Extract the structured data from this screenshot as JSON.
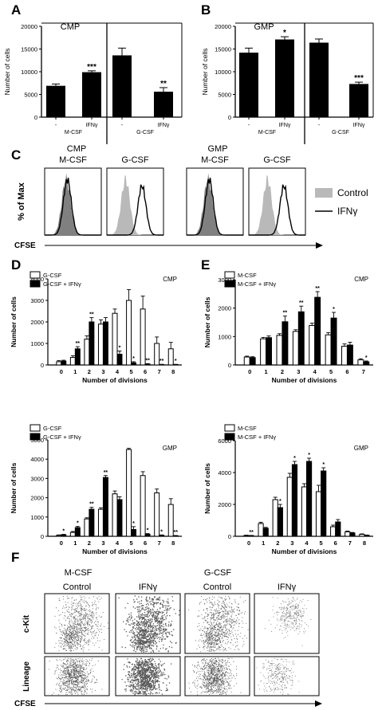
{
  "panel_letters": [
    "A",
    "B",
    "C",
    "D",
    "E",
    "F"
  ],
  "chart_data": [
    {
      "id": "A",
      "type": "bar",
      "title": "CMP",
      "ylabel": "Number of cells",
      "ylim": [
        0,
        20000
      ],
      "yticks": [
        0,
        5000,
        10000,
        15000,
        20000
      ],
      "categories": [
        "-",
        "IFNγ",
        "-",
        "IFNγ"
      ],
      "group_labels": [
        "M-CSF",
        "G-CSF"
      ],
      "values": [
        6900,
        9900,
        13600,
        5600
      ],
      "errors": [
        400,
        300,
        1600,
        900
      ],
      "sig": [
        "",
        "***",
        "",
        "**"
      ]
    },
    {
      "id": "B",
      "type": "bar",
      "title": "GMP",
      "ylabel": "Number of cells",
      "ylim": [
        0,
        20000
      ],
      "yticks": [
        0,
        5000,
        10000,
        15000,
        20000
      ],
      "categories": [
        "-",
        "IFNγ",
        "-",
        "IFNγ"
      ],
      "group_labels": [
        "M-CSF",
        "G-CSF"
      ],
      "values": [
        14200,
        17100,
        16400,
        7300
      ],
      "errors": [
        1000,
        600,
        800,
        400
      ],
      "sig": [
        "",
        "*",
        "",
        "***"
      ]
    },
    {
      "id": "C",
      "type": "area",
      "group_titles": [
        "CMP",
        "GMP"
      ],
      "box_titles": [
        "M-CSF",
        "G-CSF",
        "M-CSF",
        "G-CSF"
      ],
      "ylabel": "% of Max",
      "xlabel": "CFSE",
      "legend": [
        "Control",
        "IFNγ"
      ],
      "colors": {
        "control_mcsf": "#808080",
        "control_gcsf": "#b9b9b9",
        "ifn": "#000000"
      }
    },
    {
      "id": "D-CMP",
      "type": "bar",
      "label": "CMP",
      "xlabel": "Number of divisions",
      "ylabel": "Number of cells",
      "ylim": [
        0,
        4000
      ],
      "yticks": [
        0,
        1000,
        2000,
        3000,
        4000
      ],
      "categories": [
        "0",
        "1",
        "2",
        "3",
        "4",
        "5",
        "6",
        "7",
        "8"
      ],
      "series": [
        {
          "name": "G-CSF",
          "values": [
            150,
            350,
            1200,
            1900,
            2400,
            3000,
            2600,
            1000,
            750
          ],
          "errors": [
            50,
            80,
            150,
            200,
            200,
            500,
            600,
            300,
            300
          ]
        },
        {
          "name": "G-CSF + IFNγ",
          "values": [
            180,
            750,
            2000,
            2000,
            500,
            100,
            40,
            20,
            20
          ],
          "errors": [
            40,
            100,
            200,
            200,
            150,
            50,
            20,
            10,
            10
          ]
        }
      ],
      "sig": [
        "",
        "**",
        "**",
        "",
        "*",
        "*",
        "**",
        "**",
        "*"
      ]
    },
    {
      "id": "D-GMP",
      "type": "bar",
      "label": "GMP",
      "xlabel": "Number of divisions",
      "ylabel": "Number of cells",
      "ylim": [
        0,
        5000
      ],
      "yticks": [
        0,
        1000,
        2000,
        3000,
        4000,
        5000
      ],
      "categories": [
        "0",
        "1",
        "2",
        "3",
        "4",
        "5",
        "6",
        "7",
        "8"
      ],
      "series": [
        {
          "name": "G-CSF",
          "values": [
            50,
            200,
            900,
            1400,
            2200,
            4500,
            3150,
            2250,
            1650
          ],
          "errors": [
            20,
            50,
            60,
            80,
            150,
            60,
            200,
            200,
            300
          ]
        },
        {
          "name": "G-CSF + IFNγ",
          "values": [
            80,
            450,
            1400,
            3050,
            1900,
            350,
            100,
            50,
            30
          ],
          "errors": [
            20,
            60,
            100,
            100,
            150,
            150,
            40,
            20,
            10
          ]
        }
      ],
      "sig": [
        "*",
        "*",
        "**",
        "**",
        "",
        "*",
        "*",
        "*",
        "**"
      ]
    },
    {
      "id": "E-CMP",
      "type": "bar",
      "label": "CMP",
      "xlabel": "Number of divisions",
      "ylabel": "Number of cells",
      "ylim": [
        0,
        3000
      ],
      "yticks": [
        0,
        1000,
        2000,
        3000
      ],
      "categories": [
        "0",
        "1",
        "2",
        "3",
        "4",
        "5",
        "6",
        "7"
      ],
      "series": [
        {
          "name": "M-CSF",
          "values": [
            280,
            920,
            1040,
            1180,
            1390,
            1060,
            660,
            180
          ],
          "errors": [
            30,
            50,
            60,
            60,
            80,
            80,
            80,
            40
          ]
        },
        {
          "name": "M-CSF + IFNγ",
          "values": [
            260,
            960,
            1520,
            1870,
            2380,
            1650,
            700,
            110
          ],
          "errors": [
            30,
            60,
            200,
            200,
            200,
            200,
            100,
            30
          ]
        }
      ],
      "sig": [
        "",
        "",
        "**",
        "**",
        "**",
        "*",
        "",
        "*"
      ]
    },
    {
      "id": "E-GMP",
      "type": "bar",
      "label": "GMP",
      "xlabel": "Number of divisions",
      "ylabel": "Number of cells",
      "ylim": [
        0,
        6000
      ],
      "yticks": [
        0,
        2000,
        4000,
        6000
      ],
      "categories": [
        "0",
        "1",
        "2",
        "3",
        "4",
        "5",
        "6",
        "7",
        "8"
      ],
      "series": [
        {
          "name": "M-CSF",
          "values": [
            50,
            800,
            2300,
            3700,
            3100,
            2800,
            600,
            280,
            120
          ],
          "errors": [
            20,
            80,
            150,
            250,
            200,
            400,
            100,
            50,
            30
          ]
        },
        {
          "name": "M-CSF + IFNγ",
          "values": [
            40,
            500,
            1800,
            4500,
            4700,
            4100,
            900,
            200,
            60
          ],
          "errors": [
            15,
            60,
            200,
            200,
            200,
            200,
            150,
            40,
            20
          ]
        }
      ],
      "sig": [
        "**",
        "",
        "*",
        "*",
        "*",
        "*",
        "",
        "",
        ""
      ]
    },
    {
      "id": "F",
      "type": "scatter",
      "group_titles": [
        "M-CSF",
        "G-CSF"
      ],
      "column_titles": [
        "Control",
        "IFNγ",
        "Control",
        "IFNγ"
      ],
      "row_labels": [
        "c-Kit",
        "Lineage"
      ],
      "xlabel": "CFSE"
    }
  ]
}
